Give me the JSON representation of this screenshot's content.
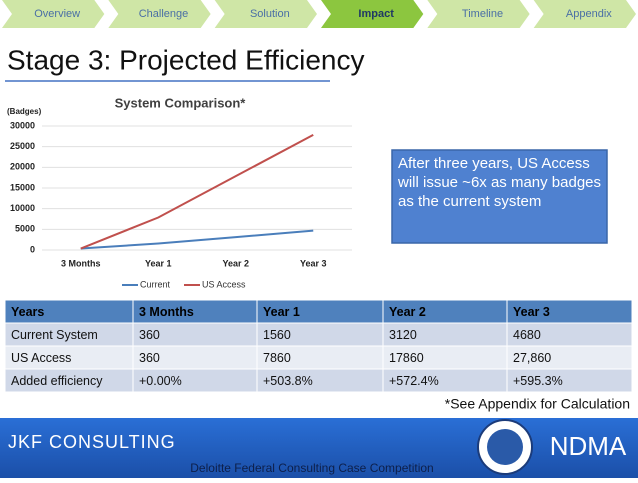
{
  "nav": {
    "items": [
      "Overview",
      "Challenge",
      "Solution",
      "Impact",
      "Timeline",
      "Appendix"
    ],
    "active_index": 3
  },
  "title": "Stage 3: Projected Efficiency",
  "chart_data": {
    "type": "line",
    "title": "System Comparison*",
    "y_label": "(Badges)",
    "categories": [
      "3 Months",
      "Year 1",
      "Year 2",
      "Year 3"
    ],
    "series": [
      {
        "name": "Current",
        "color": "#4a7ebb",
        "values": [
          360,
          1560,
          3120,
          4680
        ]
      },
      {
        "name": "US Access",
        "color": "#c0504d",
        "values": [
          360,
          7860,
          17860,
          27860
        ]
      }
    ],
    "ylim": [
      0,
      30000
    ],
    "yticks": [
      0,
      5000,
      10000,
      15000,
      20000,
      25000,
      30000
    ],
    "grid": true,
    "legend": "bottom"
  },
  "callout": "After three years, US Access will issue ~6x as many badges as the current system",
  "table": {
    "header": [
      "Years",
      "3 Months",
      "Year 1",
      "Year 2",
      "Year 3"
    ],
    "rows": [
      [
        "Current System",
        "360",
        "1560",
        "3120",
        "4680"
      ],
      [
        "US Access",
        "360",
        "7860",
        "17860",
        "27,860"
      ],
      [
        "Added efficiency",
        "+0.00%",
        "+503.8%",
        "+572.4%",
        "+595.3%"
      ]
    ]
  },
  "footnote": "*See Appendix for Calculation",
  "footer": {
    "company": "JKF CONSULTING",
    "event": "Deloitte Federal Consulting Case Competition",
    "logo_text": "NDMA"
  }
}
